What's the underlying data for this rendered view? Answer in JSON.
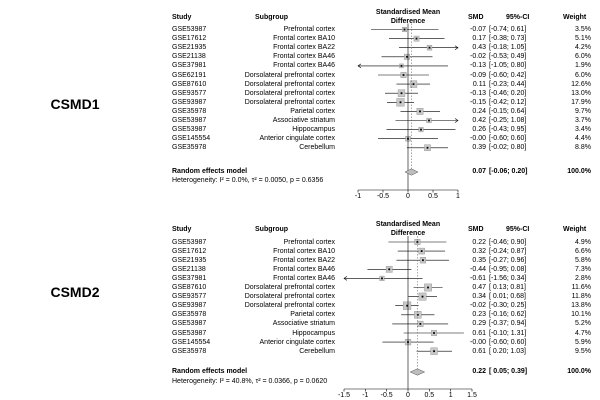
{
  "chart_data": [
    {
      "type": "forest",
      "gene": "CSMD1",
      "headers": {
        "study": "Study",
        "subgroup": "Subgroup",
        "effect_line1": "Standardised Mean",
        "effect_line2": "Difference",
        "smd": "SMD",
        "ci": "95%-CI",
        "weight": "Weight"
      },
      "studies": [
        {
          "study": "GSE53987",
          "subgroup": "Prefrontal cortex",
          "smd": -0.07,
          "lo": -0.74,
          "hi": 0.61,
          "smd_text": "-0.07",
          "ci_text": "[-0.74; 0.61]",
          "weight": "3.5%"
        },
        {
          "study": "GSE17612",
          "subgroup": "Frontal cortex BA10",
          "smd": 0.17,
          "lo": -0.38,
          "hi": 0.73,
          "smd_text": "0.17",
          "ci_text": "[-0.38; 0.73]",
          "weight": "5.1%"
        },
        {
          "study": "GSE21935",
          "subgroup": "Frontal cortex BA22",
          "smd": 0.43,
          "lo": -0.18,
          "hi": 1.05,
          "smd_text": "0.43",
          "ci_text": "[-0.18; 1.05]",
          "weight": "4.2%"
        },
        {
          "study": "GSE21138",
          "subgroup": "Frontal cortex BA46",
          "smd": -0.02,
          "lo": -0.53,
          "hi": 0.49,
          "smd_text": "-0.02",
          "ci_text": "[-0.53; 0.49]",
          "weight": "6.0%"
        },
        {
          "study": "GSE37981",
          "subgroup": "Frontal cortex BA46",
          "smd": -0.13,
          "lo": -1.05,
          "hi": 0.8,
          "smd_text": "-0.13",
          "ci_text": "[-1.05; 0.80]",
          "weight": "1.9%"
        },
        {
          "study": "GSE62191",
          "subgroup": "Dorsolateral prefrontal cortex",
          "smd": -0.09,
          "lo": -0.6,
          "hi": 0.42,
          "smd_text": "-0.09",
          "ci_text": "[-0.60; 0.42]",
          "weight": "6.0%"
        },
        {
          "study": "GSE87610",
          "subgroup": "Dorsolateral prefrontal cortex",
          "smd": 0.11,
          "lo": -0.23,
          "hi": 0.44,
          "smd_text": "0.11",
          "ci_text": "[-0.23; 0.44]",
          "weight": "12.6%"
        },
        {
          "study": "GSE93577",
          "subgroup": "Dorsolateral prefrontal cortex",
          "smd": -0.13,
          "lo": -0.46,
          "hi": 0.2,
          "smd_text": "-0.13",
          "ci_text": "[-0.46; 0.20]",
          "weight": "13.0%"
        },
        {
          "study": "GSE93987",
          "subgroup": "Dorsolateral prefrontal cortex",
          "smd": -0.15,
          "lo": -0.42,
          "hi": 0.12,
          "smd_text": "-0.15",
          "ci_text": "[-0.42; 0.12]",
          "weight": "17.9%"
        },
        {
          "study": "GSE35978",
          "subgroup": "Parietal cortex",
          "smd": 0.24,
          "lo": -0.15,
          "hi": 0.64,
          "smd_text": "0.24",
          "ci_text": "[-0.15; 0.64]",
          "weight": "9.7%"
        },
        {
          "study": "GSE53987",
          "subgroup": "Associative striatum",
          "smd": 0.42,
          "lo": -0.25,
          "hi": 1.08,
          "smd_text": "0.42",
          "ci_text": "[-0.25; 1.08]",
          "weight": "3.7%"
        },
        {
          "study": "GSE53987",
          "subgroup": "Hippocampus",
          "smd": 0.26,
          "lo": -0.43,
          "hi": 0.95,
          "smd_text": "0.26",
          "ci_text": "[-0.43; 0.95]",
          "weight": "3.4%"
        },
        {
          "study": "GSE145554",
          "subgroup": "Anterior cingulate cortex",
          "smd": 0.0,
          "lo": -0.6,
          "hi": 0.6,
          "smd_text": "-0.00",
          "ci_text": "[-0.60; 0.60]",
          "weight": "4.4%"
        },
        {
          "study": "GSE35978",
          "subgroup": "Cerebellum",
          "smd": 0.39,
          "lo": -0.02,
          "hi": 0.8,
          "smd_text": "0.39",
          "ci_text": "[-0.02; 0.80]",
          "weight": "8.8%"
        }
      ],
      "summary": {
        "label": "Random effects model",
        "smd": 0.07,
        "lo": -0.06,
        "hi": 0.2,
        "smd_text": "0.07",
        "ci_text": "[-0.06; 0.20]",
        "weight": "100.0%"
      },
      "heterogeneity": "Heterogeneity: I² = 0.0%, τ² = 0.0050, p = 0.6356",
      "xlim": [
        -1,
        1
      ],
      "ticks": [
        -1,
        -0.5,
        0,
        0.5,
        1
      ],
      "tick_labels": [
        "-1",
        "-0.5",
        "0",
        "0.5",
        "1"
      ]
    },
    {
      "type": "forest",
      "gene": "CSMD2",
      "headers": {
        "study": "Study",
        "subgroup": "Subgroup",
        "effect_line1": "Standardised Mean",
        "effect_line2": "Difference",
        "smd": "SMD",
        "ci": "95%-CI",
        "weight": "Weight"
      },
      "studies": [
        {
          "study": "GSE53987",
          "subgroup": "Prefrontal cortex",
          "smd": 0.22,
          "lo": -0.46,
          "hi": 0.9,
          "smd_text": "0.22",
          "ci_text": "[-0.46; 0.90]",
          "weight": "4.9%"
        },
        {
          "study": "GSE17612",
          "subgroup": "Frontal cortex BA10",
          "smd": 0.32,
          "lo": -0.24,
          "hi": 0.87,
          "smd_text": "0.32",
          "ci_text": "[-0.24; 0.87]",
          "weight": "6.6%"
        },
        {
          "study": "GSE21935",
          "subgroup": "Frontal cortex BA22",
          "smd": 0.35,
          "lo": -0.27,
          "hi": 0.96,
          "smd_text": "0.35",
          "ci_text": "[-0.27; 0.96]",
          "weight": "5.8%"
        },
        {
          "study": "GSE21138",
          "subgroup": "Frontal cortex BA46",
          "smd": -0.44,
          "lo": -0.95,
          "hi": 0.08,
          "smd_text": "-0.44",
          "ci_text": "[-0.95; 0.08]",
          "weight": "7.3%"
        },
        {
          "study": "GSE37981",
          "subgroup": "Frontal cortex BA46",
          "smd": -0.61,
          "lo": -1.56,
          "hi": 0.34,
          "smd_text": "-0.61",
          "ci_text": "[-1.56; 0.34]",
          "weight": "2.8%"
        },
        {
          "study": "GSE87610",
          "subgroup": "Dorsolateral prefrontal cortex",
          "smd": 0.47,
          "lo": 0.13,
          "hi": 0.81,
          "smd_text": "0.47",
          "ci_text": "[ 0.13; 0.81]",
          "weight": "11.6%"
        },
        {
          "study": "GSE93577",
          "subgroup": "Dorsolateral prefrontal cortex",
          "smd": 0.34,
          "lo": 0.01,
          "hi": 0.68,
          "smd_text": "0.34",
          "ci_text": "[ 0.01; 0.68]",
          "weight": "11.8%"
        },
        {
          "study": "GSE93987",
          "subgroup": "Dorsolateral prefrontal cortex",
          "smd": -0.02,
          "lo": -0.3,
          "hi": 0.25,
          "smd_text": "-0.02",
          "ci_text": "[-0.30; 0.25]",
          "weight": "13.8%"
        },
        {
          "study": "GSE35978",
          "subgroup": "Parietal cortex",
          "smd": 0.23,
          "lo": -0.16,
          "hi": 0.62,
          "smd_text": "0.23",
          "ci_text": "[-0.16; 0.62]",
          "weight": "10.1%"
        },
        {
          "study": "GSE53987",
          "subgroup": "Associative striatum",
          "smd": 0.29,
          "lo": -0.37,
          "hi": 0.94,
          "smd_text": "0.29",
          "ci_text": "[-0.37; 0.94]",
          "weight": "5.2%"
        },
        {
          "study": "GSE53987",
          "subgroup": "Hippocampus",
          "smd": 0.61,
          "lo": -0.1,
          "hi": 1.31,
          "smd_text": "0.61",
          "ci_text": "[-0.10; 1.31]",
          "weight": "4.7%"
        },
        {
          "study": "GSE145554",
          "subgroup": "Anterior cingulate cortex",
          "smd": 0.0,
          "lo": -0.6,
          "hi": 0.6,
          "smd_text": "-0.00",
          "ci_text": "[-0.60; 0.60]",
          "weight": "5.9%"
        },
        {
          "study": "GSE35978",
          "subgroup": "Cerebellum",
          "smd": 0.61,
          "lo": 0.2,
          "hi": 1.03,
          "smd_text": "0.61",
          "ci_text": "[ 0.20; 1.03]",
          "weight": "9.5%"
        }
      ],
      "summary": {
        "label": "Random effects model",
        "smd": 0.22,
        "lo": 0.05,
        "hi": 0.39,
        "smd_text": "0.22",
        "ci_text": "[ 0.05; 0.39]",
        "weight": "100.0%"
      },
      "heterogeneity": "Heterogeneity: I² = 40.8%, τ² = 0.0366, p = 0.0620",
      "xlim": [
        -1.5,
        1.5
      ],
      "ticks": [
        -1.5,
        -1,
        -0.5,
        0,
        0.5,
        1,
        1.5
      ],
      "tick_labels": [
        "-1.5",
        "-1",
        "-0.5",
        "0",
        "0.5",
        "1",
        "1.5"
      ]
    }
  ]
}
